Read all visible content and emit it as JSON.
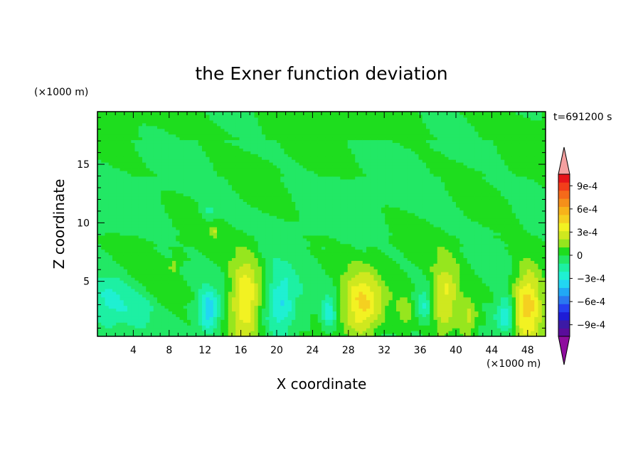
{
  "chart_data": {
    "type": "heatmap",
    "title": "the Exner function deviation",
    "xlabel": "X coordinate",
    "ylabel": "Z coordinate",
    "x_unit": "(×1000 m)",
    "y_unit": "(×1000 m)",
    "time_label": "t=691200 s",
    "xlim": [
      0,
      50
    ],
    "ylim": [
      0.3,
      19.5
    ],
    "x_ticks": [
      "4",
      "8",
      "12",
      "16",
      "20",
      "24",
      "28",
      "32",
      "36",
      "40",
      "44",
      "48"
    ],
    "y_ticks": [
      "5",
      "10",
      "15"
    ],
    "colorbar": {
      "labels": [
        {
          "value": 0.0009,
          "text": "9e-4"
        },
        {
          "value": 0.0006,
          "text": "6e-4"
        },
        {
          "value": 0.0003,
          "text": "3e-4"
        },
        {
          "value": 0,
          "text": "0"
        },
        {
          "value": -0.0003,
          "text": "−3e-4"
        },
        {
          "value": -0.0006,
          "text": "−6e-4"
        },
        {
          "value": -0.0009,
          "text": "−9e-4"
        }
      ],
      "min": -0.00105,
      "max": 0.00105,
      "over_color": "#f4a0a0",
      "under_color": "#8e0d9e",
      "colors": [
        "#5a0d9b",
        "#3c1aa6",
        "#1e1cd6",
        "#2540f0",
        "#2a78f0",
        "#21a8f5",
        "#22d6f2",
        "#1ff0d2",
        "#1df0a3",
        "#22e865",
        "#1edd1e",
        "#96e61e",
        "#cfe81f",
        "#f2f222",
        "#f5d020",
        "#f7b31a",
        "#f5901a",
        "#f56a1a",
        "#f23e1a",
        "#e6141a"
      ]
    },
    "blobs": [
      {
        "x": 16.5,
        "z": 3.3,
        "sx": 1.3,
        "sz": 2.6,
        "v": 0.00045
      },
      {
        "x": 29.5,
        "z": 2.9,
        "sx": 1.5,
        "sz": 2.0,
        "v": 0.00043
      },
      {
        "x": 38.8,
        "z": 3.4,
        "sx": 1.1,
        "sz": 2.1,
        "v": 0.00038
      },
      {
        "x": 48.0,
        "z": 3.2,
        "sx": 1.2,
        "sz": 2.2,
        "v": 0.0005
      },
      {
        "x": 41.4,
        "z": 1.8,
        "sx": 0.7,
        "sz": 1.2,
        "v": 0.00028
      },
      {
        "x": 34.4,
        "z": 2.6,
        "sx": 0.6,
        "sz": 1.1,
        "v": 0.00015
      },
      {
        "x": 1.2,
        "z": 3.0,
        "sx": 2.0,
        "sz": 1.8,
        "v": -0.00026
      },
      {
        "x": 12.4,
        "z": 2.5,
        "sx": 0.8,
        "sz": 1.2,
        "v": -0.0004
      },
      {
        "x": 20.5,
        "z": 3.2,
        "sx": 1.3,
        "sz": 1.9,
        "v": -0.00034
      },
      {
        "x": 25.8,
        "z": 2.3,
        "sx": 0.6,
        "sz": 1.1,
        "v": -0.00032
      },
      {
        "x": 45.6,
        "z": 2.1,
        "sx": 0.8,
        "sz": 1.1,
        "v": -0.00038
      },
      {
        "x": 36.5,
        "z": 3.0,
        "sx": 0.6,
        "sz": 1.0,
        "v": -0.00022
      },
      {
        "x": 4.8,
        "z": 2.5,
        "sx": 1.0,
        "sz": 1.0,
        "v": -0.00012
      },
      {
        "x": 23.5,
        "z": 2.4,
        "sx": 0.8,
        "sz": 1.4,
        "v": -8e-05
      },
      {
        "x": 12.4,
        "z": 11.0,
        "sx": 0.6,
        "sz": 0.5,
        "v": -0.00013
      },
      {
        "x": 13.0,
        "z": 9.3,
        "sx": 0.3,
        "sz": 0.3,
        "v": 0.00022
      },
      {
        "x": 8.6,
        "z": 6.4,
        "sx": 0.4,
        "sz": 0.4,
        "v": 0.00018
      }
    ]
  }
}
